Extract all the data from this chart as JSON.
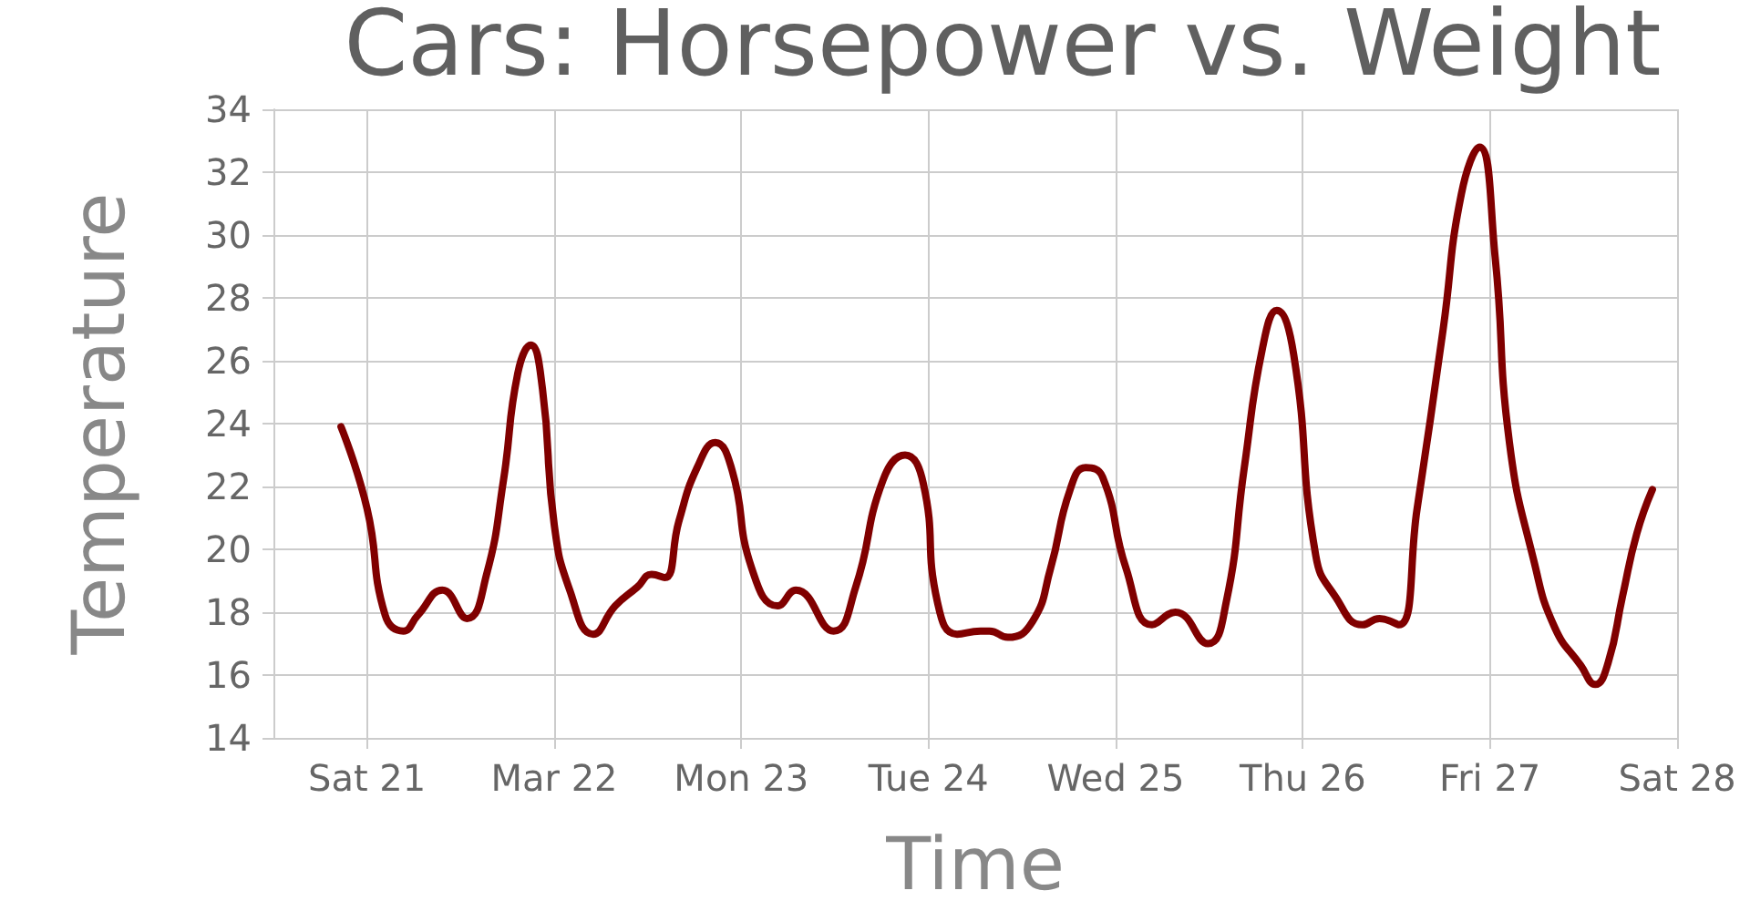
{
  "chart_data": {
    "type": "line",
    "title": "Cars: Horsepower vs. Weight",
    "xlabel": "Time",
    "ylabel": "Temperature",
    "series": [
      {
        "color": "#800000",
        "x": [
          "--03-20T20:40",
          "--03-21T00:00",
          "--03-21T02:20",
          "--03-21T04:40",
          "--03-21T06:30",
          "--03-21T09:40",
          "--03-21T12:50",
          "--03-21T15:20",
          "--03-21T17:30",
          "--03-21T19:20",
          "--03-21T21:00",
          "--03-21T22:30",
          "--03-22T00:00",
          "--03-22T02:00",
          "--03-22T05:00",
          "--03-22T07:50",
          "--03-22T10:40",
          "--03-22T12:30",
          "--03-22T14:10",
          "--03-22T16:00",
          "--03-22T18:20",
          "--03-22T20:40",
          "--03-22T22:50",
          "--03-23T01:20",
          "--03-23T04:40",
          "--03-23T07:00",
          "--03-23T11:50",
          "--03-23T14:40",
          "--03-23T18:10",
          "--03-23T21:00",
          "--03-23T23:20",
          "--03-24T01:10",
          "--03-24T03:40",
          "--03-24T06:40",
          "--03-24T07:50",
          "--03-24T10:10",
          "--03-24T13:20",
          "--03-24T15:40",
          "--03-24T18:10",
          "--03-24T20:10",
          "--03-24T22:20",
          "--03-25T01:20",
          "--03-25T04:40",
          "--03-25T07:40",
          "--03-25T11:50",
          "--03-25T14:10",
          "--03-25T16:30",
          "--03-25T18:50",
          "--03-25T20:40",
          "--03-25T22:50",
          "--03-26T01:40",
          "--03-26T04:10",
          "--03-26T07:40",
          "--03-26T09:50",
          "--03-26T12:20",
          "--03-26T14:40",
          "--03-26T18:00",
          "--03-26T20:20",
          "--03-26T22:40",
          "--03-27T00:40",
          "--03-27T02:30",
          "--03-27T05:40",
          "--03-27T08:20",
          "--03-27T11:40",
          "--03-27T13:30",
          "--03-27T15:10",
          "--03-27T17:00",
          "--03-27T18:50",
          "--03-27T20:50"
        ],
        "values": [
          23.9,
          21.3,
          17.9,
          17.4,
          17.9,
          18.7,
          17.8,
          19.2,
          22.2,
          25.6,
          26.5,
          25.1,
          20.8,
          18.7,
          17.3,
          18.2,
          18.8,
          19.2,
          19.1,
          20.9,
          22.6,
          23.4,
          22.5,
          19.4,
          18.2,
          18.7,
          17.4,
          18.8,
          22.2,
          23.0,
          22.1,
          18.3,
          17.3,
          17.4,
          17.4,
          17.2,
          17.7,
          19.4,
          21.9,
          22.6,
          22.3,
          19.4,
          17.6,
          18.0,
          17.0,
          18.3,
          22.6,
          26.4,
          27.6,
          26.2,
          19.8,
          18.5,
          17.6,
          17.8,
          17.6,
          21.3,
          27.0,
          31.3,
          32.8,
          29.3,
          23.4,
          19.6,
          17.5,
          16.3,
          15.7,
          16.4,
          18.5,
          20.5,
          21.9
        ]
      }
    ],
    "xlim": [
      "--03-20T12:00",
      "--03-28T00:00"
    ],
    "xticks": [
      {
        "value": "--03-21",
        "label": "Sat 21"
      },
      {
        "value": "--03-22",
        "label": "Mar 22"
      },
      {
        "value": "--03-23",
        "label": "Mon 23"
      },
      {
        "value": "--03-24",
        "label": "Tue 24"
      },
      {
        "value": "--03-25",
        "label": "Wed 25"
      },
      {
        "value": "--03-26",
        "label": "Thu 26"
      },
      {
        "value": "--03-27",
        "label": "Fri 27"
      },
      {
        "value": "--03-28",
        "label": "Sat 28"
      }
    ],
    "ylim": [
      14,
      34
    ],
    "yticks": [
      14,
      16,
      18,
      20,
      22,
      24,
      26,
      28,
      30,
      32,
      34
    ],
    "grid": true,
    "marker": "none",
    "line_style": "solid"
  }
}
